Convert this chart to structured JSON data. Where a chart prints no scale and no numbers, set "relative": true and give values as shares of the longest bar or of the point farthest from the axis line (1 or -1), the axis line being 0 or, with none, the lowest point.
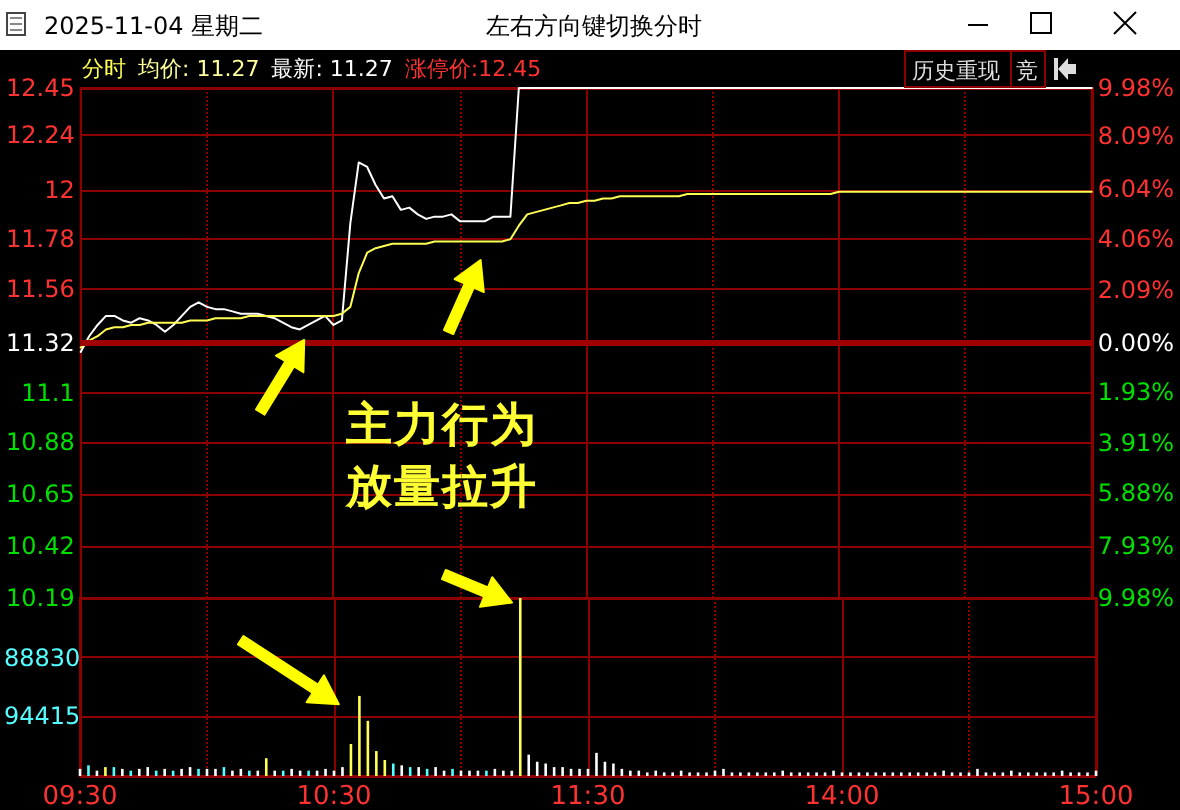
{
  "chart_data": [
    {
      "type": "line",
      "title": "2025-11-04 星期二",
      "subtitle": "左右方向键切换分时",
      "annotations": [
        "分时",
        "均价: 11.27",
        "最新: 11.27",
        "涨停价:12.45",
        "历史重现",
        "竞",
        "主力行为",
        "放量拉升"
      ],
      "categories": [
        null,
        null,
        null,
        null,
        null,
        null,
        null,
        null,
        null,
        null,
        null,
        null,
        null,
        null,
        null,
        null,
        null,
        null,
        null,
        null,
        null,
        null,
        null,
        null,
        null,
        null,
        null,
        null,
        null,
        null,
        null,
        null,
        null,
        null,
        null,
        null,
        null,
        null,
        null,
        null,
        null,
        null,
        null,
        null,
        null,
        null,
        null,
        null,
        null,
        null,
        null,
        null,
        null,
        null,
        null,
        null,
        null,
        null,
        null,
        null,
        null,
        null,
        null,
        null,
        null,
        null,
        null,
        null,
        null,
        null,
        null,
        null,
        null,
        null,
        null,
        null,
        null,
        null,
        null,
        null,
        null,
        null,
        null,
        null,
        null,
        null,
        null,
        null,
        null,
        null,
        null,
        null,
        null,
        null,
        null,
        null,
        null,
        null,
        null,
        null,
        null,
        null,
        null,
        null,
        null,
        null,
        null,
        null,
        null,
        null,
        null,
        null,
        null,
        null,
        null,
        null,
        null,
        null,
        null,
        null,
        null
      ],
      "series": [
        {
          "color": "#ffffff",
          "values": [
            11.28,
            11.35,
            11.4,
            11.44,
            11.44,
            11.42,
            11.41,
            11.43,
            11.42,
            11.4,
            11.37,
            11.4,
            11.44,
            11.48,
            11.5,
            11.48,
            11.47,
            11.47,
            11.46,
            11.45,
            11.45,
            11.45,
            11.44,
            11.43,
            11.41,
            11.39,
            11.38,
            11.4,
            11.42,
            11.44,
            11.4,
            11.42,
            11.85,
            12.12,
            12.1,
            12.02,
            11.96,
            11.97,
            11.91,
            11.92,
            11.89,
            11.87,
            11.88,
            11.88,
            11.89,
            11.86,
            11.86,
            11.86,
            11.86,
            11.88,
            11.88,
            11.88,
            12.45,
            12.45,
            12.45,
            12.45,
            12.45,
            12.45,
            12.45,
            12.45,
            12.45,
            12.45,
            12.45,
            12.45,
            12.45,
            12.45,
            12.45,
            12.45,
            12.45,
            12.45,
            12.45,
            12.45,
            12.45,
            12.45,
            12.45,
            12.45,
            12.45,
            12.45,
            12.45,
            12.45,
            12.45,
            12.45,
            12.45,
            12.45,
            12.45,
            12.45,
            12.45,
            12.45,
            12.45,
            12.45,
            12.45,
            12.45,
            12.45,
            12.45,
            12.45,
            12.45,
            12.45,
            12.45,
            12.45,
            12.45,
            12.45,
            12.45,
            12.45,
            12.45,
            12.45,
            12.45,
            12.45,
            12.45,
            12.45,
            12.45,
            12.45,
            12.45,
            12.45,
            12.45,
            12.45,
            12.45,
            12.45,
            12.45,
            12.45,
            12.45,
            12.45
          ]
        },
        {
          "color": "#ffff54",
          "values": [
            11.3,
            11.33,
            11.35,
            11.38,
            11.39,
            11.39,
            11.4,
            11.4,
            11.41,
            11.41,
            11.41,
            11.41,
            11.41,
            11.42,
            11.42,
            11.42,
            11.43,
            11.43,
            11.43,
            11.43,
            11.44,
            11.44,
            11.44,
            11.44,
            11.44,
            11.44,
            11.44,
            11.44,
            11.44,
            11.44,
            11.44,
            11.45,
            11.48,
            11.63,
            11.72,
            11.74,
            11.75,
            11.76,
            11.76,
            11.76,
            11.76,
            11.76,
            11.77,
            11.77,
            11.77,
            11.77,
            11.77,
            11.77,
            11.77,
            11.77,
            11.77,
            11.78,
            11.84,
            11.89,
            11.9,
            11.91,
            11.92,
            11.93,
            11.94,
            11.94,
            11.95,
            11.95,
            11.96,
            11.96,
            11.97,
            11.97,
            11.97,
            11.97,
            11.97,
            11.97,
            11.97,
            11.97,
            11.98,
            11.98,
            11.98,
            11.98,
            11.98,
            11.98,
            11.98,
            11.98,
            11.98,
            11.98,
            11.98,
            11.98,
            11.98,
            11.98,
            11.98,
            11.98,
            11.98,
            11.98,
            11.99,
            11.99,
            11.99,
            11.99,
            11.99,
            11.99,
            11.99,
            11.99,
            11.99,
            11.99,
            11.99,
            11.99,
            11.99,
            11.99,
            11.99,
            11.99,
            11.99,
            11.99,
            11.99,
            11.99,
            11.99,
            11.99,
            11.99,
            11.99,
            11.99,
            11.99,
            11.99,
            11.99,
            11.99,
            11.99,
            11.99
          ]
        }
      ],
      "ylim": [
        10.19,
        12.45
      ],
      "yticks": [
        12.45,
        12.24,
        12.0,
        11.78,
        11.56,
        11.32,
        11.1,
        10.88,
        10.65,
        10.42,
        10.19
      ],
      "y2lim": [
        -9.98,
        9.98
      ],
      "y2ticks": [
        {
          "value": 9.98,
          "label": "9.98%"
        },
        {
          "value": 8.09,
          "label": "8.09%"
        },
        {
          "value": 6.04,
          "label": "6.04%"
        },
        {
          "value": 4.06,
          "label": "4.06%"
        },
        {
          "value": 2.09,
          "label": "2.09%"
        },
        {
          "value": 0,
          "label": "0.00%"
        },
        {
          "value": -1.93,
          "label": "1.93%"
        },
        {
          "value": -3.91,
          "label": "3.91%"
        },
        {
          "value": -5.88,
          "label": "5.88%"
        },
        {
          "value": -7.93,
          "label": "7.93%"
        },
        {
          "value": -9.98,
          "label": "9.98%"
        }
      ],
      "ref_lines": [
        {
          "axis": "y",
          "value": 11.32,
          "color": "#a00000"
        }
      ],
      "grid": true,
      "line_style": "solid",
      "tick_labels": "y"
    },
    {
      "type": "bar",
      "relative": true,
      "annotations": [
        "88830",
        "94415"
      ],
      "categories": [
        "09:30",
        null,
        null,
        null,
        null,
        null,
        null,
        null,
        null,
        null,
        null,
        null,
        null,
        null,
        null,
        null,
        null,
        null,
        null,
        null,
        null,
        null,
        null,
        null,
        null,
        null,
        null,
        null,
        null,
        null,
        "10:30",
        null,
        null,
        null,
        null,
        null,
        null,
        null,
        null,
        null,
        null,
        null,
        null,
        null,
        null,
        null,
        null,
        null,
        null,
        null,
        null,
        null,
        null,
        null,
        null,
        null,
        null,
        null,
        null,
        null,
        "11:30",
        null,
        null,
        null,
        null,
        null,
        null,
        null,
        null,
        null,
        null,
        null,
        null,
        null,
        null,
        null,
        null,
        null,
        null,
        null,
        null,
        null,
        null,
        null,
        null,
        null,
        null,
        null,
        null,
        null,
        "14:00",
        null,
        null,
        null,
        null,
        null,
        null,
        null,
        null,
        null,
        null,
        null,
        null,
        null,
        null,
        null,
        null,
        null,
        null,
        null,
        null,
        null,
        null,
        null,
        null,
        null,
        null,
        null,
        null,
        null,
        "15:00"
      ],
      "values": [
        0.04,
        0.06,
        0.03,
        0.05,
        0.05,
        0.04,
        0.03,
        0.04,
        0.05,
        0.03,
        0.04,
        0.03,
        0.04,
        0.05,
        0.04,
        0.04,
        0.04,
        0.05,
        0.03,
        0.04,
        0.03,
        0.03,
        0.1,
        0.03,
        0.03,
        0.04,
        0.03,
        0.03,
        0.03,
        0.04,
        0.03,
        0.05,
        0.18,
        0.45,
        0.31,
        0.14,
        0.09,
        0.07,
        0.06,
        0.05,
        0.05,
        0.04,
        0.05,
        0.03,
        0.04,
        0.03,
        0.03,
        0.03,
        0.03,
        0.04,
        0.03,
        0.03,
        1.0,
        0.12,
        0.08,
        0.07,
        0.05,
        0.05,
        0.04,
        0.04,
        0.04,
        0.13,
        0.08,
        0.07,
        0.04,
        0.03,
        0.03,
        0.02,
        0.03,
        0.02,
        0.02,
        0.03,
        0.02,
        0.02,
        0.02,
        0.03,
        0.04,
        0.02,
        0.02,
        0.02,
        0.02,
        0.02,
        0.02,
        0.03,
        0.02,
        0.02,
        0.02,
        0.02,
        0.02,
        0.03,
        0.02,
        0.02,
        0.02,
        0.02,
        0.02,
        0.02,
        0.02,
        0.02,
        0.02,
        0.02,
        0.02,
        0.02,
        0.03,
        0.02,
        0.02,
        0.02,
        0.04,
        0.02,
        0.02,
        0.02,
        0.03,
        0.02,
        0.02,
        0.02,
        0.02,
        0.02,
        0.03,
        0.02,
        0.02,
        0.02,
        0.03
      ],
      "colors": [
        "#ffffff",
        "#54ffff",
        "#ffffff",
        "#ffff54",
        "#54ffff",
        "#ffffff",
        "#54ffff",
        "#ffffff",
        "#ffffff",
        "#54ffff",
        "#ffffff",
        "#54ffff",
        "#ffffff",
        "#ffffff",
        "#54ffff",
        "#ffffff",
        "#ffffff",
        "#54ffff",
        "#ffffff",
        "#ffffff",
        "#54ffff",
        "#ffffff",
        "#ffff54",
        "#ffffff",
        "#54ffff",
        "#ffffff",
        "#ffffff",
        "#54ffff",
        "#ffffff",
        "#ffffff",
        "#ffffff",
        "#ffffff",
        "#ffff54",
        "#ffff54",
        "#ffff54",
        "#ffff54",
        "#ffff54",
        "#54ffff",
        "#ffffff",
        "#54ffff",
        "#ffffff",
        "#54ffff",
        "#ffffff",
        "#ffffff",
        "#54ffff",
        "#ffffff",
        "#ffffff",
        "#ffffff",
        "#54ffff",
        "#ffffff",
        "#ffffff",
        "#ffffff",
        "#ffff54",
        "#ffffff",
        "#ffffff",
        "#ffffff",
        "#ffffff",
        "#ffffff",
        "#ffffff",
        "#ffffff",
        "#ffffff",
        "#ffffff",
        "#ffffff",
        "#ffffff",
        "#ffffff",
        "#ffffff",
        "#ffffff",
        "#ffffff",
        "#ffffff",
        "#ffffff",
        "#ffffff",
        "#ffffff",
        "#ffffff",
        "#ffffff",
        "#ffffff",
        "#ffffff",
        "#ffffff",
        "#ffffff",
        "#ffffff",
        "#ffffff",
        "#ffffff",
        "#ffffff",
        "#ffffff",
        "#ffffff",
        "#ffffff",
        "#ffffff",
        "#ffffff",
        "#ffffff",
        "#ffffff",
        "#ffffff",
        "#ffffff",
        "#ffffff",
        "#ffffff",
        "#ffffff",
        "#ffffff",
        "#ffffff",
        "#ffffff",
        "#ffffff",
        "#ffffff",
        "#ffffff",
        "#ffffff",
        "#ffffff",
        "#ffffff",
        "#ffffff",
        "#ffffff",
        "#ffffff",
        "#ffffff",
        "#ffffff",
        "#ffffff",
        "#ffffff",
        "#ffffff",
        "#ffffff",
        "#ffffff",
        "#ffffff",
        "#ffffff",
        "#ffffff",
        "#ffffff",
        "#ffffff",
        "#ffffff",
        "#ffffff",
        "#ffffff"
      ],
      "grid": true,
      "tick_labels": "x"
    }
  ]
}
